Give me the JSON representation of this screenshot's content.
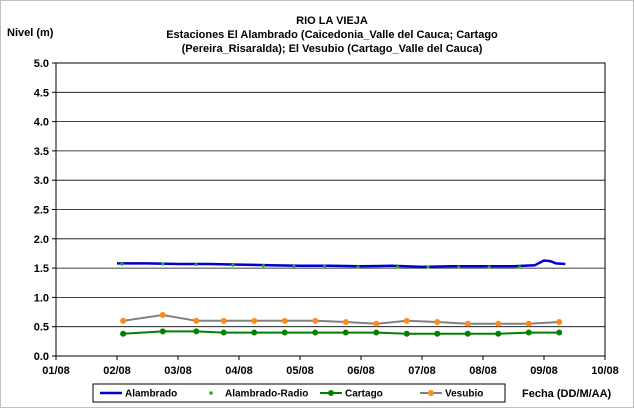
{
  "chart_data": {
    "type": "line",
    "title_lines": [
      "RIO LA VIEJA",
      "Estaciones El Alambrado (Caicedonia_Valle del Cauca; Cartago",
      "(Pereira_Risaralda);  El Vesubio (Cartago_Valle del Cauca)"
    ],
    "ylabel": "Nivel (m)",
    "xlabel": "Fecha (DD/M/AA)",
    "ylim": [
      0,
      5
    ],
    "yticks": [
      "0.0",
      "0.5",
      "1.0",
      "1.5",
      "2.0",
      "2.5",
      "3.0",
      "3.5",
      "4.0",
      "4.5",
      "5.0"
    ],
    "xlim": [
      1,
      10
    ],
    "xticks": [
      "01/08",
      "02/08",
      "03/08",
      "04/08",
      "05/08",
      "06/08",
      "07/08",
      "08/08",
      "09/08",
      "10/08"
    ],
    "grid": "horizontal",
    "legend_position": "bottom",
    "series": [
      {
        "name": "Alambrado",
        "style": "line",
        "color": "#0000cc",
        "x": [
          2.0,
          2.5,
          3.0,
          3.5,
          4.0,
          4.5,
          5.0,
          5.5,
          6.0,
          6.5,
          7.0,
          7.5,
          8.0,
          8.5,
          8.85,
          9.0,
          9.1,
          9.2,
          9.35
        ],
        "y": [
          1.58,
          1.58,
          1.57,
          1.57,
          1.56,
          1.55,
          1.54,
          1.54,
          1.53,
          1.54,
          1.52,
          1.53,
          1.53,
          1.53,
          1.55,
          1.63,
          1.62,
          1.58,
          1.57
        ]
      },
      {
        "name": "Alambrado-Radio",
        "style": "markers",
        "color": "#22aa22",
        "x": [
          2.08,
          2.75,
          3.3,
          3.9,
          4.4,
          4.9,
          5.4,
          5.95,
          6.6,
          7.1,
          7.6,
          8.1,
          8.6
        ],
        "y": [
          1.57,
          1.57,
          1.56,
          1.55,
          1.54,
          1.53,
          1.53,
          1.52,
          1.52,
          1.52,
          1.52,
          1.52,
          1.52
        ]
      },
      {
        "name": "Cartago",
        "style": "line-markers",
        "color": "#008000",
        "x": [
          2.1,
          2.75,
          3.3,
          3.75,
          4.25,
          4.75,
          5.25,
          5.75,
          6.25,
          6.75,
          7.25,
          7.75,
          8.25,
          8.75,
          9.25
        ],
        "y": [
          0.38,
          0.42,
          0.42,
          0.4,
          0.4,
          0.4,
          0.4,
          0.4,
          0.4,
          0.38,
          0.38,
          0.38,
          0.38,
          0.4,
          0.4
        ]
      },
      {
        "name": "Vesubio",
        "style": "line-markers",
        "color": "#ff8c1a",
        "line_color": "#808080",
        "x": [
          2.1,
          2.75,
          3.3,
          3.75,
          4.25,
          4.75,
          5.25,
          5.75,
          6.25,
          6.75,
          7.25,
          7.75,
          8.25,
          8.75,
          9.25
        ],
        "y": [
          0.6,
          0.7,
          0.6,
          0.6,
          0.6,
          0.6,
          0.6,
          0.58,
          0.55,
          0.6,
          0.58,
          0.55,
          0.55,
          0.55,
          0.58
        ]
      }
    ]
  }
}
